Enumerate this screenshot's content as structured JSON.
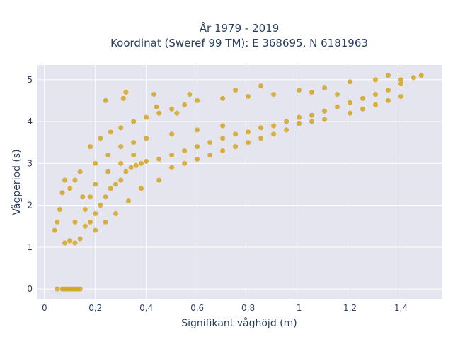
{
  "chart_data": {
    "type": "scatter",
    "title_line1": "År 1979 - 2019",
    "title_line2": "Koordinat (Sweref 99 TM): E 368695, N 6181963",
    "xlabel": "Signifikant våghöjd (m)",
    "ylabel": "Vågperiod (s)",
    "xlim": [
      -0.03,
      1.56
    ],
    "ylim": [
      -0.25,
      5.35
    ],
    "x_ticks": [
      0,
      0.2,
      0.4,
      0.6,
      0.8,
      1.0,
      1.2,
      1.4
    ],
    "x_tick_labels": [
      "0",
      "0,2",
      "0,4",
      "0,6",
      "0,8",
      "1",
      "1,2",
      "1,4"
    ],
    "y_ticks": [
      0,
      1,
      2,
      3,
      4,
      5
    ],
    "y_tick_labels": [
      "0",
      "1",
      "2",
      "3",
      "4",
      "5"
    ],
    "grid": true,
    "background": "#e5e5ef",
    "marker_color": "#d4a520",
    "series": [
      {
        "points": [
          [
            0.05,
            0.0
          ],
          [
            0.07,
            0.0
          ],
          [
            0.08,
            0.0
          ],
          [
            0.09,
            0.0
          ],
          [
            0.1,
            0.0
          ],
          [
            0.11,
            0.0
          ],
          [
            0.12,
            0.0
          ],
          [
            0.13,
            0.0
          ],
          [
            0.14,
            0.0
          ],
          [
            0.04,
            1.4
          ],
          [
            0.05,
            1.6
          ],
          [
            0.06,
            1.9
          ],
          [
            0.07,
            2.3
          ],
          [
            0.08,
            2.6
          ],
          [
            0.1,
            2.4
          ],
          [
            0.12,
            2.6
          ],
          [
            0.14,
            2.8
          ],
          [
            0.08,
            1.1
          ],
          [
            0.1,
            1.15
          ],
          [
            0.12,
            1.1
          ],
          [
            0.14,
            1.2
          ],
          [
            0.16,
            1.5
          ],
          [
            0.18,
            1.6
          ],
          [
            0.2,
            1.8
          ],
          [
            0.22,
            2.0
          ],
          [
            0.24,
            2.2
          ],
          [
            0.26,
            2.4
          ],
          [
            0.28,
            2.5
          ],
          [
            0.3,
            2.6
          ],
          [
            0.32,
            2.8
          ],
          [
            0.34,
            2.9
          ],
          [
            0.36,
            2.95
          ],
          [
            0.38,
            3.0
          ],
          [
            0.4,
            3.05
          ],
          [
            0.45,
            3.1
          ],
          [
            0.5,
            3.2
          ],
          [
            0.55,
            3.3
          ],
          [
            0.6,
            3.4
          ],
          [
            0.65,
            3.5
          ],
          [
            0.7,
            3.6
          ],
          [
            0.75,
            3.7
          ],
          [
            0.8,
            3.75
          ],
          [
            0.85,
            3.85
          ],
          [
            0.9,
            3.9
          ],
          [
            0.95,
            4.0
          ],
          [
            1.0,
            4.1
          ],
          [
            1.05,
            4.15
          ],
          [
            1.1,
            4.25
          ],
          [
            1.15,
            4.35
          ],
          [
            1.2,
            4.45
          ],
          [
            1.25,
            4.55
          ],
          [
            1.3,
            4.65
          ],
          [
            1.35,
            4.75
          ],
          [
            1.4,
            4.9
          ],
          [
            1.45,
            5.05
          ],
          [
            1.48,
            5.1
          ],
          [
            0.18,
            3.4
          ],
          [
            0.22,
            3.6
          ],
          [
            0.26,
            3.75
          ],
          [
            0.3,
            3.85
          ],
          [
            0.35,
            4.0
          ],
          [
            0.4,
            4.1
          ],
          [
            0.45,
            4.2
          ],
          [
            0.5,
            4.3
          ],
          [
            0.55,
            4.4
          ],
          [
            0.6,
            4.5
          ],
          [
            0.7,
            4.55
          ],
          [
            0.8,
            4.6
          ],
          [
            0.9,
            4.65
          ],
          [
            1.0,
            4.75
          ],
          [
            1.1,
            4.8
          ],
          [
            1.2,
            4.95
          ],
          [
            1.3,
            5.0
          ],
          [
            1.35,
            5.1
          ],
          [
            1.4,
            5.0
          ],
          [
            0.24,
            4.5
          ],
          [
            0.31,
            4.55
          ],
          [
            0.44,
            4.35
          ],
          [
            0.52,
            4.2
          ],
          [
            0.32,
            4.7
          ],
          [
            0.43,
            4.65
          ],
          [
            0.57,
            4.65
          ],
          [
            0.75,
            4.75
          ],
          [
            0.85,
            4.85
          ],
          [
            1.05,
            4.7
          ],
          [
            1.15,
            4.65
          ],
          [
            0.2,
            3.0
          ],
          [
            0.25,
            3.2
          ],
          [
            0.3,
            3.4
          ],
          [
            0.35,
            3.5
          ],
          [
            0.4,
            3.6
          ],
          [
            0.5,
            3.7
          ],
          [
            0.6,
            3.8
          ],
          [
            0.7,
            3.9
          ],
          [
            0.15,
            2.2
          ],
          [
            0.2,
            2.5
          ],
          [
            0.25,
            2.8
          ],
          [
            0.3,
            3.0
          ],
          [
            0.35,
            3.2
          ],
          [
            0.12,
            1.6
          ],
          [
            0.16,
            1.9
          ],
          [
            0.18,
            2.2
          ],
          [
            0.45,
            2.6
          ],
          [
            0.5,
            2.9
          ],
          [
            0.55,
            3.0
          ],
          [
            0.6,
            3.1
          ],
          [
            0.65,
            3.2
          ],
          [
            0.7,
            3.3
          ],
          [
            0.75,
            3.4
          ],
          [
            0.8,
            3.5
          ],
          [
            0.85,
            3.6
          ],
          [
            0.9,
            3.7
          ],
          [
            0.95,
            3.8
          ],
          [
            1.0,
            3.95
          ],
          [
            1.05,
            4.0
          ],
          [
            1.1,
            4.05
          ],
          [
            1.2,
            4.2
          ],
          [
            1.25,
            4.3
          ],
          [
            1.3,
            4.4
          ],
          [
            1.35,
            4.5
          ],
          [
            1.4,
            4.6
          ],
          [
            0.38,
            2.4
          ],
          [
            0.33,
            2.1
          ],
          [
            0.28,
            1.8
          ],
          [
            0.24,
            1.6
          ],
          [
            0.2,
            1.4
          ]
        ]
      }
    ]
  }
}
